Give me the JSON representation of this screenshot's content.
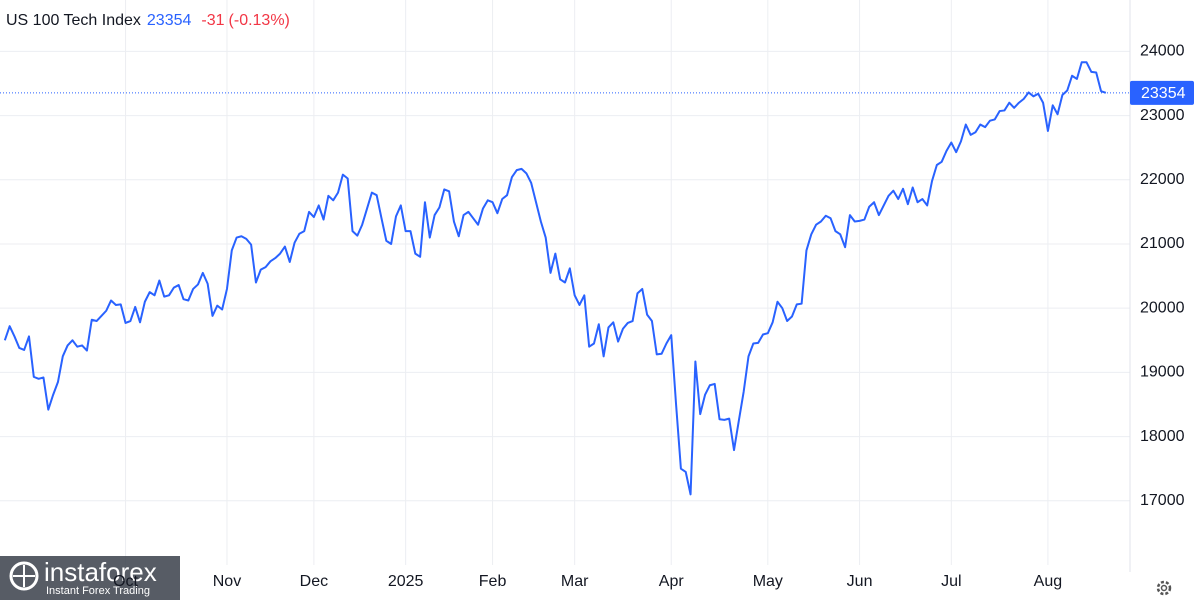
{
  "chart_data": {
    "type": "line",
    "title": "US 100 Tech Index",
    "last_value": 23354,
    "change": -31,
    "change_percent": {
      "value": -0.13,
      "label": "(-0.13%)"
    },
    "watermark": {
      "brand": "instaforex",
      "tagline": "Instant Forex Trading"
    },
    "series": [
      {
        "name": "US 100 Tech Index",
        "color": "#2962ff",
        "values": [
          19500,
          19720,
          19560,
          19380,
          19350,
          19560,
          18930,
          18900,
          18920,
          18420,
          18650,
          18850,
          19250,
          19420,
          19500,
          19400,
          19420,
          19340,
          19820,
          19800,
          19880,
          19960,
          20120,
          20050,
          20060,
          19770,
          19800,
          20020,
          19780,
          20100,
          20250,
          20200,
          20430,
          20180,
          20200,
          20320,
          20360,
          20140,
          20120,
          20300,
          20370,
          20550,
          20380,
          19880,
          20040,
          19980,
          20300,
          20900,
          21100,
          21120,
          21080,
          20990,
          20400,
          20600,
          20640,
          20730,
          20780,
          20850,
          20960,
          20720,
          21020,
          21160,
          21200,
          21500,
          21420,
          21600,
          21380,
          21750,
          21680,
          21800,
          22080,
          22020,
          21200,
          21130,
          21300,
          21550,
          21800,
          21760,
          21400,
          21050,
          21000,
          21430,
          21600,
          21200,
          21200,
          20850,
          20800,
          21650,
          21100,
          21450,
          21570,
          21850,
          21820,
          21350,
          21120,
          21450,
          21500,
          21400,
          21300,
          21550,
          21680,
          21650,
          21480,
          21700,
          21760,
          22040,
          22150,
          22170,
          22100,
          21950,
          21650,
          21350,
          21100,
          20550,
          20850,
          20450,
          20400,
          20620,
          20200,
          20050,
          20200,
          19400,
          19450,
          19750,
          19250,
          19700,
          19780,
          19480,
          19680,
          19770,
          19800,
          20230,
          20300,
          19900,
          19800,
          19280,
          19290,
          19450,
          19580,
          18500,
          17500,
          17450,
          17100,
          19170,
          18350,
          18650,
          18800,
          18820,
          18270,
          18260,
          18280,
          17790,
          18250,
          18700,
          19250,
          19450,
          19460,
          19590,
          19610,
          19780,
          20100,
          20000,
          19800,
          19870,
          20060,
          20070,
          20900,
          21150,
          21300,
          21350,
          21440,
          21400,
          21200,
          21150,
          20950,
          21450,
          21350,
          21360,
          21380,
          21580,
          21650,
          21450,
          21600,
          21750,
          21830,
          21700,
          21860,
          21620,
          21880,
          21650,
          21700,
          21600,
          21980,
          22230,
          22280,
          22450,
          22580,
          22430,
          22600,
          22860,
          22700,
          22740,
          22860,
          22820,
          22920,
          22940,
          23070,
          23080,
          23200,
          23120,
          23200,
          23260,
          23360,
          23300,
          23340,
          23200,
          22760,
          23160,
          23020,
          23320,
          23390,
          23620,
          23570,
          23830,
          23830,
          23680,
          23670,
          23380,
          23354
        ]
      }
    ],
    "xlim": [
      -1,
      233
    ],
    "xticks": [
      {
        "value": 25,
        "label": "Oct"
      },
      {
        "value": 46,
        "label": "Nov"
      },
      {
        "value": 64,
        "label": "Dec"
      },
      {
        "value": 83,
        "label": "2025"
      },
      {
        "value": 101,
        "label": "Feb"
      },
      {
        "value": 118,
        "label": "Mar"
      },
      {
        "value": 138,
        "label": "Apr"
      },
      {
        "value": 158,
        "label": "May"
      },
      {
        "value": 177,
        "label": "Jun"
      },
      {
        "value": 196,
        "label": "Jul"
      },
      {
        "value": 216,
        "label": "Aug"
      }
    ],
    "ylim": [
      16000,
      24800
    ],
    "yticks": [
      17000,
      18000,
      19000,
      20000,
      21000,
      22000,
      23000,
      24000
    ],
    "grid": true
  }
}
